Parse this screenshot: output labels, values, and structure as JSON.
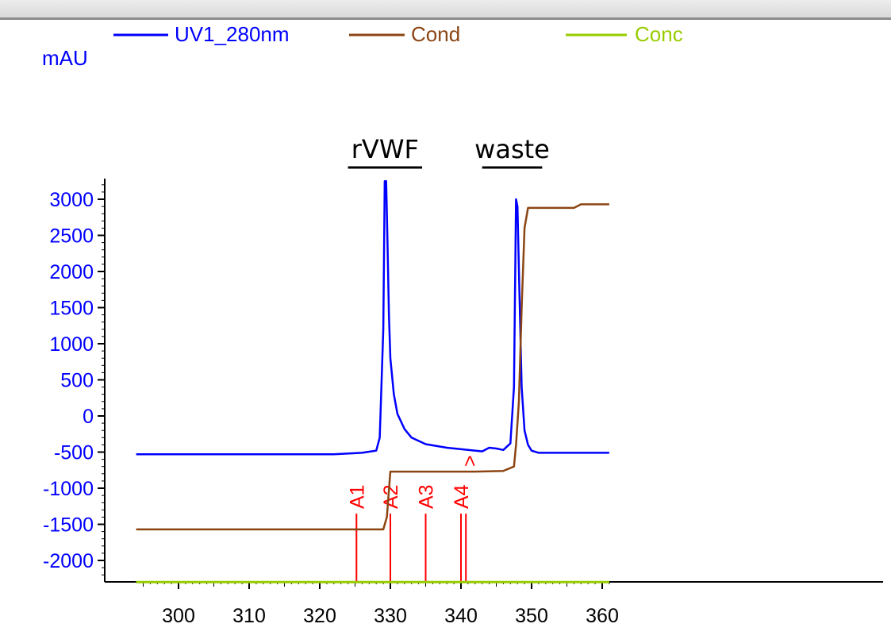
{
  "chart_data": {
    "type": "line",
    "ylabel": "mAU",
    "xlim": [
      294,
      361
    ],
    "ylim": [
      -2350,
      3250
    ],
    "x_ticks": [
      300,
      310,
      320,
      330,
      340,
      350,
      360
    ],
    "x_tick_labels": [
      "300",
      "310",
      "320",
      "330",
      "340",
      "350",
      "360"
    ],
    "y_ticks": [
      3000,
      2500,
      2000,
      1500,
      1000,
      500,
      0,
      -500,
      -1000,
      -1500,
      -2000
    ],
    "y_tick_labels": [
      "3000",
      "2500",
      "2000",
      "1500",
      "1000",
      "500",
      "0",
      "-500",
      "-1000",
      "-1500",
      "-2000"
    ],
    "legend": {
      "placement": "top-left",
      "entries": [
        "UV1_280nm",
        "Cond",
        "Conc"
      ]
    },
    "series": [
      {
        "name": "UV1_280nm",
        "color": "#0000ff",
        "x": [
          294,
          322,
          326,
          327,
          328,
          328.5,
          329,
          329.2,
          329.4,
          329.6,
          329.8,
          330,
          330.5,
          331,
          332,
          333,
          335,
          338,
          341,
          343,
          344,
          345,
          346,
          347,
          347.5,
          347.8,
          348,
          348.3,
          348.6,
          349,
          349.5,
          350,
          351,
          361
        ],
        "y": [
          -530,
          -530,
          -510,
          -495,
          -480,
          -300,
          1200,
          3250,
          3250,
          2400,
          1400,
          800,
          300,
          30,
          -180,
          -300,
          -390,
          -440,
          -470,
          -490,
          -440,
          -450,
          -470,
          -380,
          400,
          3000,
          2900,
          1600,
          400,
          -200,
          -400,
          -480,
          -510,
          -510
        ]
      },
      {
        "name": "Cond",
        "color": "#8b4513",
        "x": [
          294,
          329,
          329.5,
          330,
          342,
          346,
          347.5,
          347.8,
          348.2,
          348.6,
          349,
          349.5,
          356,
          357,
          361
        ],
        "y": [
          -1570,
          -1570,
          -1400,
          -770,
          -770,
          -760,
          -700,
          -400,
          200,
          1500,
          2600,
          2880,
          2880,
          2930,
          2930
        ]
      },
      {
        "name": "Conc",
        "color": "#99cc00",
        "x": [
          294,
          361
        ],
        "y": [
          -2300,
          -2300
        ]
      }
    ],
    "fraction_marks": [
      {
        "label": "A1",
        "x": 325.2
      },
      {
        "label": "A2",
        "x": 330
      },
      {
        "label": "A3",
        "x": 335
      },
      {
        "label": "A4",
        "x": 340
      }
    ],
    "fraction_extra_line_x": 340.7,
    "fraction_end_mark": {
      "label": ">",
      "x": 341.2
    },
    "annotations": [
      {
        "text": "rVWF",
        "x_from": 324,
        "x_to": 334.5
      },
      {
        "text": "waste",
        "x_from": 343,
        "x_to": 351.5
      }
    ]
  }
}
